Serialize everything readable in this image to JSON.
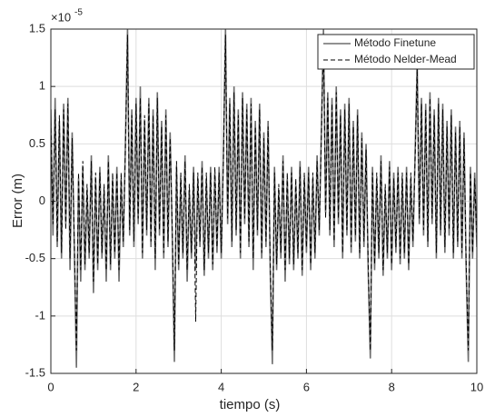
{
  "chart_data": {
    "type": "line",
    "xlabel": "tiempo (s)",
    "ylabel": "Error  (m)",
    "y_exponent": {
      "base": "×10",
      "power": "-5"
    },
    "xlim": [
      0,
      10
    ],
    "ylim": [
      -1.5,
      1.5
    ],
    "xticks": [
      0,
      2,
      4,
      6,
      8,
      10
    ],
    "yticks": [
      -1.5,
      -1,
      -0.5,
      0,
      0.5,
      1,
      1.5
    ],
    "grid": true,
    "legend": "upper right",
    "x": [
      0,
      0.05,
      0.1,
      0.15,
      0.2,
      0.25,
      0.3,
      0.35,
      0.4,
      0.45,
      0.5,
      0.55,
      0.6,
      0.65,
      0.7,
      0.75,
      0.8,
      0.85,
      0.9,
      0.95,
      1,
      1.05,
      1.1,
      1.15,
      1.2,
      1.25,
      1.3,
      1.35,
      1.4,
      1.45,
      1.5,
      1.55,
      1.6,
      1.65,
      1.7,
      1.75,
      1.8,
      1.85,
      1.9,
      1.95,
      2,
      2.05,
      2.1,
      2.15,
      2.2,
      2.25,
      2.3,
      2.35,
      2.4,
      2.45,
      2.5,
      2.55,
      2.6,
      2.65,
      2.7,
      2.75,
      2.8,
      2.85,
      2.9,
      2.95,
      3,
      3.05,
      3.1,
      3.15,
      3.2,
      3.25,
      3.3,
      3.35,
      3.4,
      3.45,
      3.5,
      3.55,
      3.6,
      3.65,
      3.7,
      3.75,
      3.8,
      3.85,
      3.9,
      3.95,
      4,
      4.05,
      4.1,
      4.15,
      4.2,
      4.25,
      4.3,
      4.35,
      4.4,
      4.45,
      4.5,
      4.55,
      4.6,
      4.65,
      4.7,
      4.75,
      4.8,
      4.85,
      4.9,
      4.95,
      5,
      5.05,
      5.1,
      5.15,
      5.2,
      5.25,
      5.3,
      5.35,
      5.4,
      5.45,
      5.5,
      5.55,
      5.6,
      5.65,
      5.7,
      5.75,
      5.8,
      5.85,
      5.9,
      5.95,
      6,
      6.05,
      6.1,
      6.15,
      6.2,
      6.25,
      6.3,
      6.35,
      6.4,
      6.45,
      6.5,
      6.55,
      6.6,
      6.65,
      6.7,
      6.75,
      6.8,
      6.85,
      6.9,
      6.95,
      7,
      7.05,
      7.1,
      7.15,
      7.2,
      7.25,
      7.3,
      7.35,
      7.4,
      7.45,
      7.5,
      7.55,
      7.6,
      7.65,
      7.7,
      7.75,
      7.8,
      7.85,
      7.9,
      7.95,
      8,
      8.05,
      8.1,
      8.15,
      8.2,
      8.25,
      8.3,
      8.35,
      8.4,
      8.45,
      8.5,
      8.55,
      8.6,
      8.65,
      8.7,
      8.75,
      8.8,
      8.85,
      8.9,
      8.95,
      9,
      9.05,
      9.1,
      9.15,
      9.2,
      9.25,
      9.3,
      9.35,
      9.4,
      9.45,
      9.5,
      9.55,
      9.6,
      9.65,
      9.7,
      9.75,
      9.8,
      9.85,
      9.9,
      9.95,
      10
    ],
    "series": [
      {
        "name": "Método Finetune",
        "color": "#6e6e6e",
        "dash": false,
        "values": [
          0.8,
          -0.3,
          0.9,
          -0.4,
          0.7,
          -0.5,
          0.85,
          -0.2,
          0.9,
          -0.6,
          0.6,
          -0.4,
          -1.45,
          0.2,
          -0.7,
          0.3,
          -0.6,
          0.1,
          -0.5,
          0.4,
          -0.8,
          0.2,
          -0.6,
          0.3,
          -0.5,
          0.1,
          -0.7,
          0.4,
          -0.6,
          0.2,
          -0.5,
          0.3,
          -0.7,
          0.2,
          -0.4,
          0.5,
          1.5,
          -0.3,
          0.8,
          -0.4,
          0.9,
          -0.2,
          1.0,
          -0.5,
          0.7,
          -0.3,
          0.9,
          -0.4,
          0.8,
          -0.6,
          0.95,
          -0.3,
          0.7,
          -0.5,
          0.8,
          -0.4,
          0.6,
          -0.3,
          -1.4,
          0.3,
          -0.6,
          0.2,
          -0.5,
          0.4,
          -0.7,
          0.1,
          -0.5,
          0.3,
          -0.6,
          0.2,
          -0.4,
          0.35,
          -0.65,
          0.2,
          -0.5,
          0.3,
          -0.6,
          0.25,
          -0.45,
          0.3,
          -0.5,
          0.4,
          1.5,
          -0.2,
          0.9,
          -0.4,
          1.0,
          -0.3,
          0.8,
          -0.5,
          0.95,
          -0.2,
          0.85,
          -0.4,
          0.9,
          -0.6,
          0.7,
          -0.3,
          0.85,
          -0.5,
          0.6,
          -0.4,
          0.7,
          -0.6,
          -1.42,
          0.3,
          -0.6,
          0.1,
          -0.5,
          0.4,
          -0.7,
          0.2,
          -0.55,
          0.3,
          -0.6,
          0.15,
          -0.5,
          0.35,
          -0.65,
          0.2,
          -0.45,
          0.3,
          -0.6,
          0.2,
          -0.5,
          0.4,
          -0.3,
          0.6,
          1.5,
          -0.1,
          0.95,
          -0.3,
          0.9,
          -0.4,
          1.0,
          -0.2,
          0.8,
          -0.5,
          0.85,
          -0.3,
          0.9,
          -0.45,
          0.7,
          -0.35,
          0.8,
          -0.5,
          0.6,
          -0.4,
          0.5,
          -0.6,
          -1.37,
          0.3,
          -0.6,
          0.2,
          -0.5,
          0.4,
          -0.65,
          0.1,
          -0.5,
          0.35,
          -0.6,
          0.25,
          -0.45,
          0.3,
          -0.55,
          0.2,
          -0.5,
          0.3,
          -0.6,
          0.2,
          -0.4,
          0.4,
          1.2,
          -0.2,
          0.9,
          -0.3,
          0.85,
          -0.4,
          0.95,
          -0.2,
          0.8,
          -0.5,
          0.9,
          -0.3,
          0.85,
          -0.45,
          0.7,
          -0.3,
          0.8,
          -0.5,
          0.65,
          -0.4,
          0.7,
          -0.5,
          0.6,
          -0.6,
          -1.4,
          0.3,
          -0.5,
          0.25,
          -0.4
        ]
      },
      {
        "name": "Método Nelder-Mead",
        "color": "#000000",
        "dash": true,
        "values": [
          0.7,
          -0.2,
          0.8,
          -0.35,
          0.75,
          -0.45,
          0.8,
          -0.25,
          0.85,
          -0.5,
          0.55,
          -0.35,
          -1.3,
          0.25,
          -0.6,
          0.35,
          -0.55,
          0.15,
          -0.45,
          0.35,
          -0.7,
          0.25,
          -0.55,
          0.25,
          -0.45,
          0.15,
          -0.6,
          0.35,
          -0.55,
          0.25,
          -0.45,
          0.25,
          -0.6,
          0.25,
          -0.35,
          0.45,
          1.45,
          -0.25,
          0.75,
          -0.35,
          0.85,
          -0.15,
          0.9,
          -0.45,
          0.75,
          -0.25,
          0.85,
          -0.35,
          0.75,
          -0.5,
          0.9,
          -0.25,
          0.65,
          -0.45,
          0.75,
          -0.35,
          0.55,
          -0.25,
          -1.3,
          0.35,
          -0.55,
          0.25,
          -0.45,
          0.35,
          -0.6,
          0.15,
          -0.45,
          0.25,
          -1.05,
          0.25,
          -0.35,
          0.3,
          -0.6,
          0.25,
          -0.45,
          0.25,
          -0.55,
          0.3,
          -0.4,
          0.25,
          -0.45,
          0.35,
          1.45,
          -0.15,
          0.85,
          -0.35,
          0.95,
          -0.25,
          0.75,
          -0.45,
          0.9,
          -0.15,
          0.8,
          -0.35,
          0.85,
          -0.5,
          0.65,
          -0.25,
          0.8,
          -0.45,
          0.55,
          -0.35,
          0.65,
          -0.55,
          -1.3,
          0.25,
          -0.55,
          0.15,
          -0.45,
          0.35,
          -0.6,
          0.25,
          -0.5,
          0.25,
          -0.55,
          0.2,
          -0.45,
          0.3,
          -0.6,
          0.25,
          -0.4,
          0.25,
          -0.55,
          0.25,
          -0.45,
          0.35,
          -0.25,
          0.55,
          1.45,
          -0.15,
          0.9,
          -0.25,
          0.85,
          -0.35,
          0.95,
          -0.15,
          0.75,
          -0.45,
          0.8,
          -0.25,
          0.85,
          -0.4,
          0.65,
          -0.3,
          0.75,
          -0.45,
          0.55,
          -0.35,
          0.45,
          -0.55,
          -1.3,
          0.25,
          -0.55,
          0.25,
          -0.45,
          0.35,
          -0.6,
          0.15,
          -0.45,
          0.3,
          -0.55,
          0.2,
          -0.4,
          0.25,
          -0.5,
          0.25,
          -0.45,
          0.25,
          -0.55,
          0.25,
          -0.35,
          0.35,
          1.15,
          -0.15,
          0.85,
          -0.25,
          0.8,
          -0.35,
          0.9,
          -0.15,
          0.75,
          -0.45,
          0.85,
          -0.25,
          0.8,
          -0.4,
          0.65,
          -0.25,
          0.75,
          -0.45,
          0.6,
          -0.35,
          0.65,
          -0.45,
          0.55,
          -0.55,
          -1.3,
          0.25,
          -0.45,
          0.2,
          -0.35
        ]
      }
    ]
  }
}
